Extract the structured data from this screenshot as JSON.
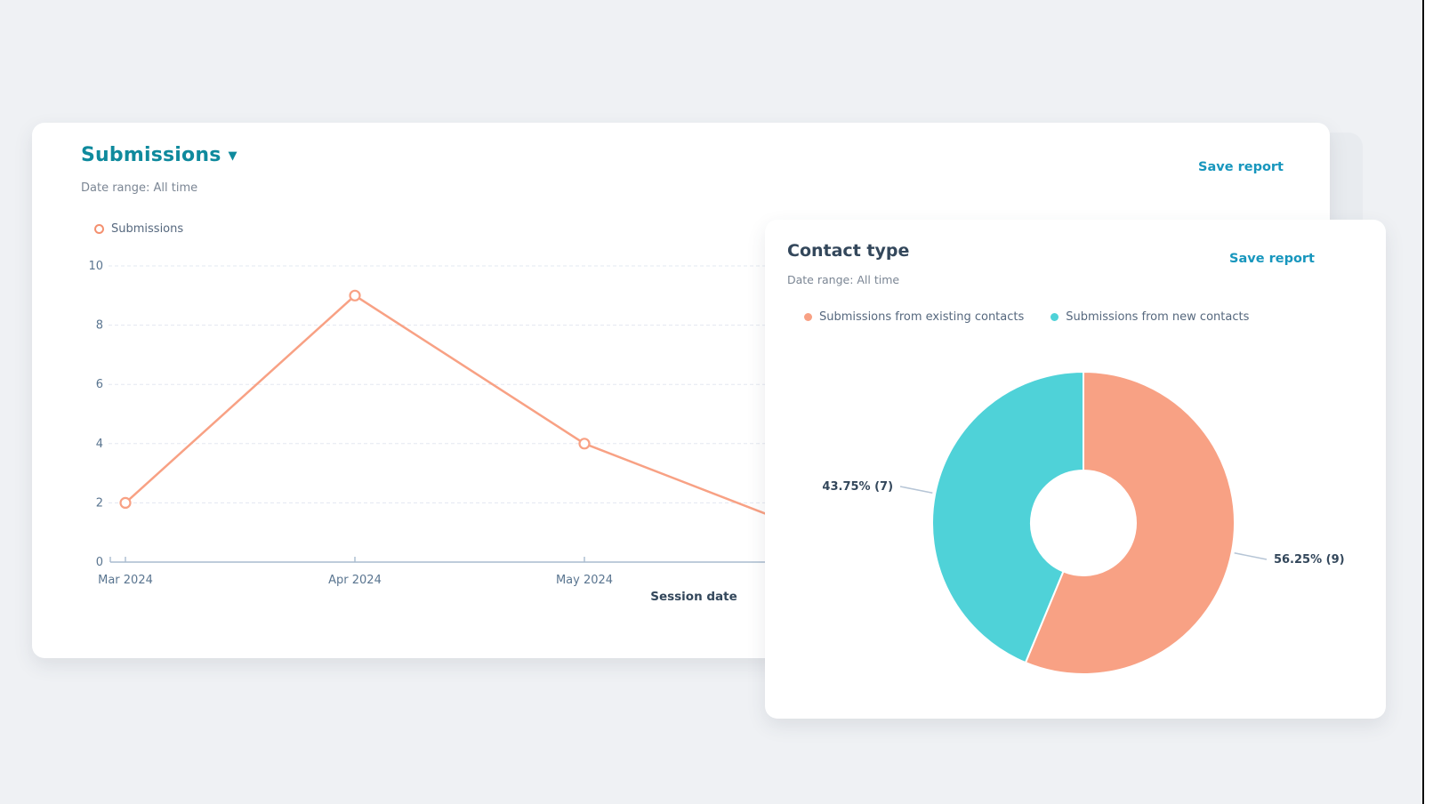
{
  "theme": {
    "link_color": "#1796bd",
    "heading_teal": "#0f8a9d",
    "heading_dark": "#33475b",
    "muted_text": "#7b8694",
    "axis_text": "#5a7590",
    "gridline_color": "#e3e8f0",
    "axis_line_color": "#a9bccf",
    "background": "#eff1f4",
    "series_orange": "#f8a184",
    "series_teal": "#4fd2d8"
  },
  "submissions_card": {
    "title": "Submissions",
    "has_dropdown_caret": true,
    "caret_glyph": "▼",
    "date_range": "Date range: All time",
    "save_report_label": "Save report",
    "x_axis_title": "Session date"
  },
  "contact_card": {
    "title": "Contact type",
    "date_range": "Date range: All time",
    "save_report_label": "Save report"
  },
  "chart_data": [
    {
      "type": "line",
      "title": "Submissions",
      "categories": [
        "Mar 2024",
        "Apr 2024",
        "May 2024"
      ],
      "series": [
        {
          "name": "Submissions",
          "color": "#f8a184",
          "marker": "hollow-circle",
          "values": [
            2,
            9,
            4
          ]
        }
      ],
      "visible_trailing_segment": {
        "description": "line continues downward to the right and is partially hidden behind the overlapping Contact type card",
        "estimated_next_value": 1
      },
      "xlabel": "Session date",
      "ylabel": "",
      "ylim": [
        0,
        10
      ],
      "yticks": [
        0,
        2,
        4,
        6,
        8,
        10
      ],
      "grid": "horizontal dashed gridlines",
      "legend_position": "top-left"
    },
    {
      "type": "pie",
      "donut": true,
      "title": "Contact type",
      "start_angle": "12 o'clock",
      "direction": "clockwise",
      "slices": [
        {
          "label": "Submissions from existing contacts",
          "value": 9,
          "percent": 56.25,
          "data_label": "56.25% (9)",
          "color": "#f8a184"
        },
        {
          "label": "Submissions from new contacts",
          "value": 7,
          "percent": 43.75,
          "data_label": "43.75% (7)",
          "color": "#4fd2d8"
        }
      ],
      "legend_position": "top"
    }
  ]
}
